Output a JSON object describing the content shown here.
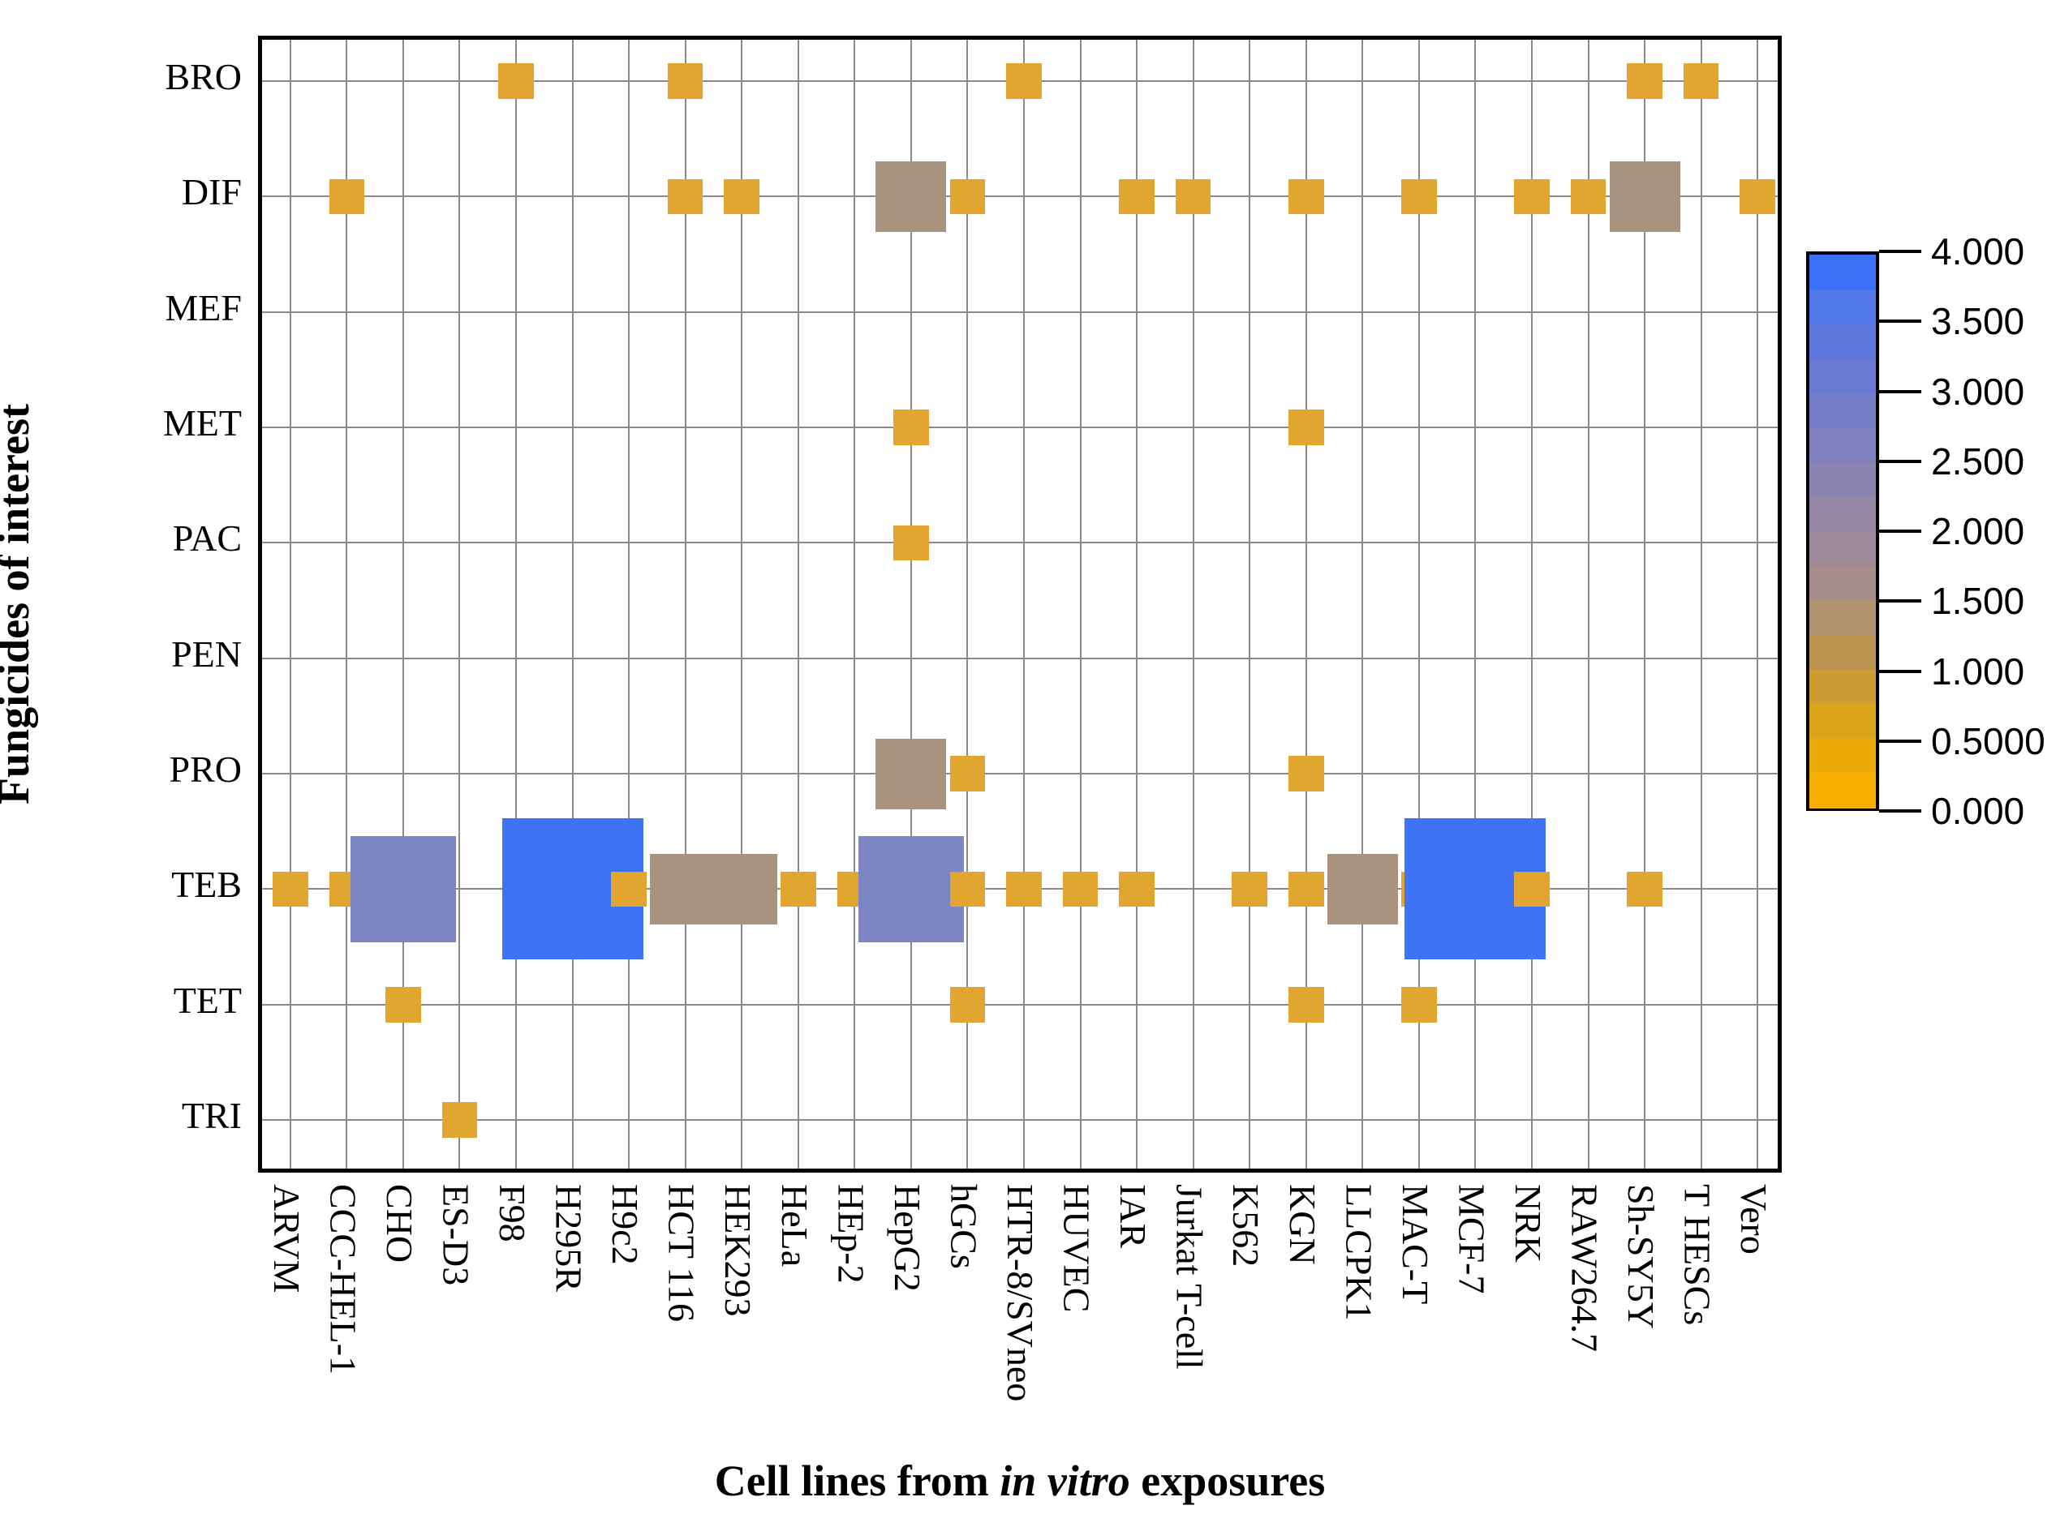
{
  "y_axis": {
    "title": "Fungicides of interest",
    "categories": [
      "BRO",
      "DIF",
      "MEF",
      "MET",
      "PAC",
      "PEN",
      "PRO",
      "TEB",
      "TET",
      "TRI"
    ]
  },
  "x_axis": {
    "title_prefix": "Cell lines from ",
    "title_italic": "in vitro",
    "title_suffix": " exposures",
    "categories": [
      "ARVM",
      "CCC-HEL-1",
      "CHO",
      "ES-D3",
      "F98",
      "H295R",
      "H9c2",
      "HCT 116",
      "HEK293",
      "HeLa",
      "HEp-2",
      "HepG2",
      "hGCs",
      "HTR-8/SVneo",
      "HUVEC",
      "IAR",
      "Jurkat T-cell",
      "K562",
      "KGN",
      "LLCPK1",
      "MAC-T",
      "MCF-7",
      "NRK",
      "RAW264.7",
      "Sh-SY5Y",
      "T HESCs",
      "Vero"
    ]
  },
  "colorbar": {
    "tick_labels": [
      "4.000",
      "3.500",
      "3.000",
      "2.500",
      "2.000",
      "1.500",
      "1.000",
      "0.5000",
      "0.000"
    ],
    "tick_values": [
      4.0,
      3.5,
      3.0,
      2.5,
      2.0,
      1.5,
      1.0,
      0.5,
      0.0
    ],
    "range_min": 0.0,
    "range_max": 4.0,
    "band_colors_top_to_bottom": [
      "#3B70F8",
      "#5277E9",
      "#5E78DF",
      "#6A7AD4",
      "#757DC9",
      "#8080BE",
      "#8A84B2",
      "#9487A5",
      "#9E8A98",
      "#A88E8A",
      "#B29370",
      "#BD9751",
      "#CC9D33",
      "#DCA41A",
      "#EBAA08",
      "#F7AE00"
    ]
  },
  "style_colors": {
    "grid": "#8a8a8a",
    "border": "#000000",
    "value_1": "#E2A530",
    "value_2": "#A9937E",
    "value_3": "#7B86C3",
    "value_4": "#3F73F5"
  },
  "chart_data": {
    "type": "heatmap",
    "note": "Sized-square heatmap: square side and color scale with value (0-4), squares centered on grid intersections",
    "x": [
      "ARVM",
      "CCC-HEL-1",
      "CHO",
      "ES-D3",
      "F98",
      "H295R",
      "H9c2",
      "HCT 116",
      "HEK293",
      "HeLa",
      "HEp-2",
      "HepG2",
      "hGCs",
      "HTR-8/SVneo",
      "HUVEC",
      "IAR",
      "Jurkat T-cell",
      "K562",
      "KGN",
      "LLCPK1",
      "MAC-T",
      "MCF-7",
      "NRK",
      "RAW264.7",
      "Sh-SY5Y",
      "T HESCs",
      "Vero"
    ],
    "y": [
      "BRO",
      "DIF",
      "MEF",
      "MET",
      "PAC",
      "PEN",
      "PRO",
      "TEB",
      "TET",
      "TRI"
    ],
    "xlabel": "Cell lines from in vitro exposures",
    "ylabel": "Fungicides of interest",
    "legend_position": "right",
    "grid": true,
    "points": [
      {
        "x": "ARVM",
        "y": "TEB",
        "value": 1
      },
      {
        "x": "CCC-HEL-1",
        "y": "DIF",
        "value": 1
      },
      {
        "x": "CCC-HEL-1",
        "y": "TEB",
        "value": 1
      },
      {
        "x": "CHO",
        "y": "TEB",
        "value": 3
      },
      {
        "x": "CHO",
        "y": "TET",
        "value": 1
      },
      {
        "x": "ES-D3",
        "y": "TRI",
        "value": 1
      },
      {
        "x": "F98",
        "y": "BRO",
        "value": 1
      },
      {
        "x": "H295R",
        "y": "TEB",
        "value": 4
      },
      {
        "x": "H9c2",
        "y": "TEB",
        "value": 1
      },
      {
        "x": "HCT 116",
        "y": "BRO",
        "value": 1
      },
      {
        "x": "HCT 116",
        "y": "DIF",
        "value": 1
      },
      {
        "x": "HCT 116",
        "y": "TEB",
        "value": 2
      },
      {
        "x": "HEK293",
        "y": "DIF",
        "value": 1
      },
      {
        "x": "HEK293",
        "y": "TEB",
        "value": 2
      },
      {
        "x": "HeLa",
        "y": "TEB",
        "value": 1
      },
      {
        "x": "HEp-2",
        "y": "TEB",
        "value": 1
      },
      {
        "x": "HepG2",
        "y": "DIF",
        "value": 2
      },
      {
        "x": "HepG2",
        "y": "MET",
        "value": 1
      },
      {
        "x": "HepG2",
        "y": "PAC",
        "value": 1
      },
      {
        "x": "HepG2",
        "y": "PRO",
        "value": 2
      },
      {
        "x": "HepG2",
        "y": "TEB",
        "value": 3
      },
      {
        "x": "hGCs",
        "y": "DIF",
        "value": 1
      },
      {
        "x": "hGCs",
        "y": "PRO",
        "value": 1
      },
      {
        "x": "hGCs",
        "y": "TEB",
        "value": 1
      },
      {
        "x": "hGCs",
        "y": "TET",
        "value": 1
      },
      {
        "x": "HTR-8/SVneo",
        "y": "BRO",
        "value": 1
      },
      {
        "x": "HTR-8/SVneo",
        "y": "TEB",
        "value": 1
      },
      {
        "x": "HUVEC",
        "y": "TEB",
        "value": 1
      },
      {
        "x": "IAR",
        "y": "DIF",
        "value": 1
      },
      {
        "x": "IAR",
        "y": "TEB",
        "value": 1
      },
      {
        "x": "Jurkat T-cell",
        "y": "DIF",
        "value": 1
      },
      {
        "x": "K562",
        "y": "TEB",
        "value": 1
      },
      {
        "x": "KGN",
        "y": "DIF",
        "value": 1
      },
      {
        "x": "KGN",
        "y": "MET",
        "value": 1
      },
      {
        "x": "KGN",
        "y": "PRO",
        "value": 1
      },
      {
        "x": "KGN",
        "y": "TEB",
        "value": 1
      },
      {
        "x": "KGN",
        "y": "TET",
        "value": 1
      },
      {
        "x": "LLCPK1",
        "y": "TEB",
        "value": 2
      },
      {
        "x": "MAC-T",
        "y": "DIF",
        "value": 1
      },
      {
        "x": "MAC-T",
        "y": "TEB",
        "value": 1
      },
      {
        "x": "MAC-T",
        "y": "TET",
        "value": 1
      },
      {
        "x": "MCF-7",
        "y": "TEB",
        "value": 4
      },
      {
        "x": "NRK",
        "y": "DIF",
        "value": 1
      },
      {
        "x": "NRK",
        "y": "TEB",
        "value": 1
      },
      {
        "x": "RAW264.7",
        "y": "DIF",
        "value": 1
      },
      {
        "x": "Sh-SY5Y",
        "y": "BRO",
        "value": 1
      },
      {
        "x": "Sh-SY5Y",
        "y": "DIF",
        "value": 2
      },
      {
        "x": "Sh-SY5Y",
        "y": "TEB",
        "value": 1
      },
      {
        "x": "T HESCs",
        "y": "BRO",
        "value": 1
      },
      {
        "x": "Vero",
        "y": "DIF",
        "value": 1
      }
    ]
  }
}
